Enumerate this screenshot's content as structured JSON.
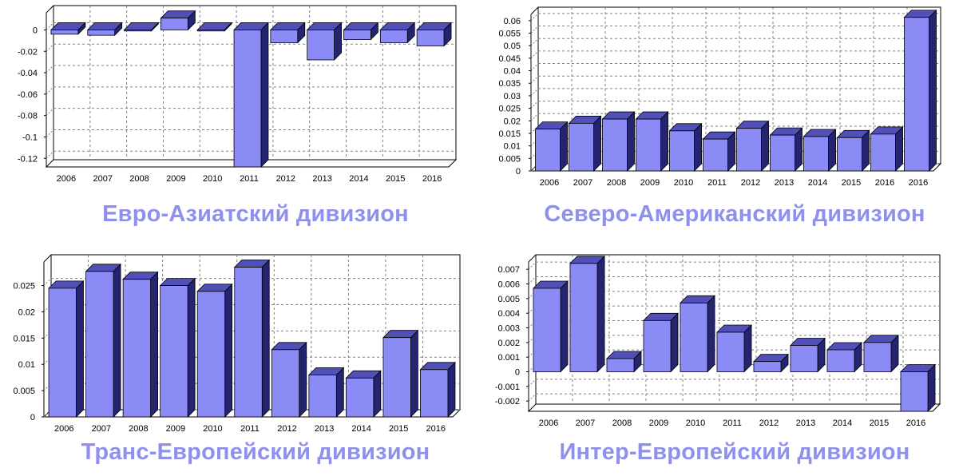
{
  "colors": {
    "bar_front": "#8b8bf6",
    "bar_side": "#242471",
    "bar_top": "#5050b8",
    "bar_stroke": "#000000",
    "grid": "#808080",
    "caption": "#8f8fec"
  },
  "chart_data": [
    {
      "type": "bar",
      "title": "Евро-Азиатский дивизион",
      "categories": [
        "2006",
        "2007",
        "2008",
        "2009",
        "2010",
        "2011",
        "2012",
        "2013",
        "2014",
        "2015",
        "2016"
      ],
      "values": [
        -0.004,
        -0.005,
        -0.001,
        0.011,
        -0.001,
        -0.128,
        -0.012,
        -0.028,
        -0.009,
        -0.012,
        -0.015
      ],
      "ylim": [
        -0.128,
        0.016
      ],
      "yticks": [
        0,
        -0.02,
        -0.04,
        -0.06,
        -0.08,
        -0.1,
        -0.12
      ],
      "ytick_labels": [
        "0",
        "-0.02",
        "-0.04",
        "-0.06",
        "-0.08",
        "-0.1",
        "-0.12"
      ],
      "grid": true
    },
    {
      "type": "bar",
      "title": "Северо-Американский дивизион",
      "categories": [
        "2006",
        "2007",
        "2008",
        "2009",
        "2010",
        "2011",
        "2012",
        "2013",
        "2014",
        "2015",
        "2016",
        "2016"
      ],
      "values": [
        0.0167,
        0.019,
        0.0207,
        0.0207,
        0.016,
        0.0127,
        0.017,
        0.0143,
        0.0137,
        0.0133,
        0.0147,
        0.0613
      ],
      "ylim": [
        0,
        0.0625
      ],
      "yticks": [
        0,
        0.005,
        0.01,
        0.015,
        0.02,
        0.025,
        0.03,
        0.035,
        0.04,
        0.045,
        0.05,
        0.055,
        0.06
      ],
      "ytick_labels": [
        "0",
        "0.005",
        "0.01",
        "0.015",
        "0.02",
        "0.025",
        "0.03",
        "0.035",
        "0.04",
        "0.045",
        "0.05",
        "0.055",
        "0.06"
      ],
      "grid": true
    },
    {
      "type": "bar",
      "title": "Транс-Европейский дивизион",
      "categories": [
        "2006",
        "2007",
        "2008",
        "2009",
        "2010",
        "2011",
        "2012",
        "2013",
        "2014",
        "2015",
        "2016"
      ],
      "values": [
        0.0245,
        0.0277,
        0.0262,
        0.025,
        0.0239,
        0.0285,
        0.0128,
        0.008,
        0.0074,
        0.0151,
        0.009
      ],
      "ylim": [
        0,
        0.0295
      ],
      "yticks": [
        0,
        0.005,
        0.01,
        0.015,
        0.02,
        0.025
      ],
      "ytick_labels": [
        "0",
        "0.005",
        "0.01",
        "0.015",
        "0.02",
        "0.025"
      ],
      "grid": true
    },
    {
      "type": "bar",
      "title": "Интер-Европейский дивизион",
      "categories": [
        "2006",
        "2007",
        "2008",
        "2009",
        "2010",
        "2011",
        "2012",
        "2013",
        "2014",
        "2015",
        "2016"
      ],
      "values": [
        0.0057,
        0.0074,
        0.0009,
        0.0035,
        0.0047,
        0.0027,
        0.0007,
        0.0018,
        0.0015,
        0.002,
        -0.0027
      ],
      "ylim": [
        -0.0027,
        0.0075
      ],
      "yticks": [
        -0.002,
        -0.001,
        0,
        0.001,
        0.002,
        0.003,
        0.004,
        0.005,
        0.006,
        0.007
      ],
      "ytick_labels": [
        "-0.002",
        "-0.001",
        "0",
        "0.001",
        "0.002",
        "0.003",
        "0.004",
        "0.005",
        "0.006",
        "0.007"
      ],
      "grid": true
    }
  ]
}
